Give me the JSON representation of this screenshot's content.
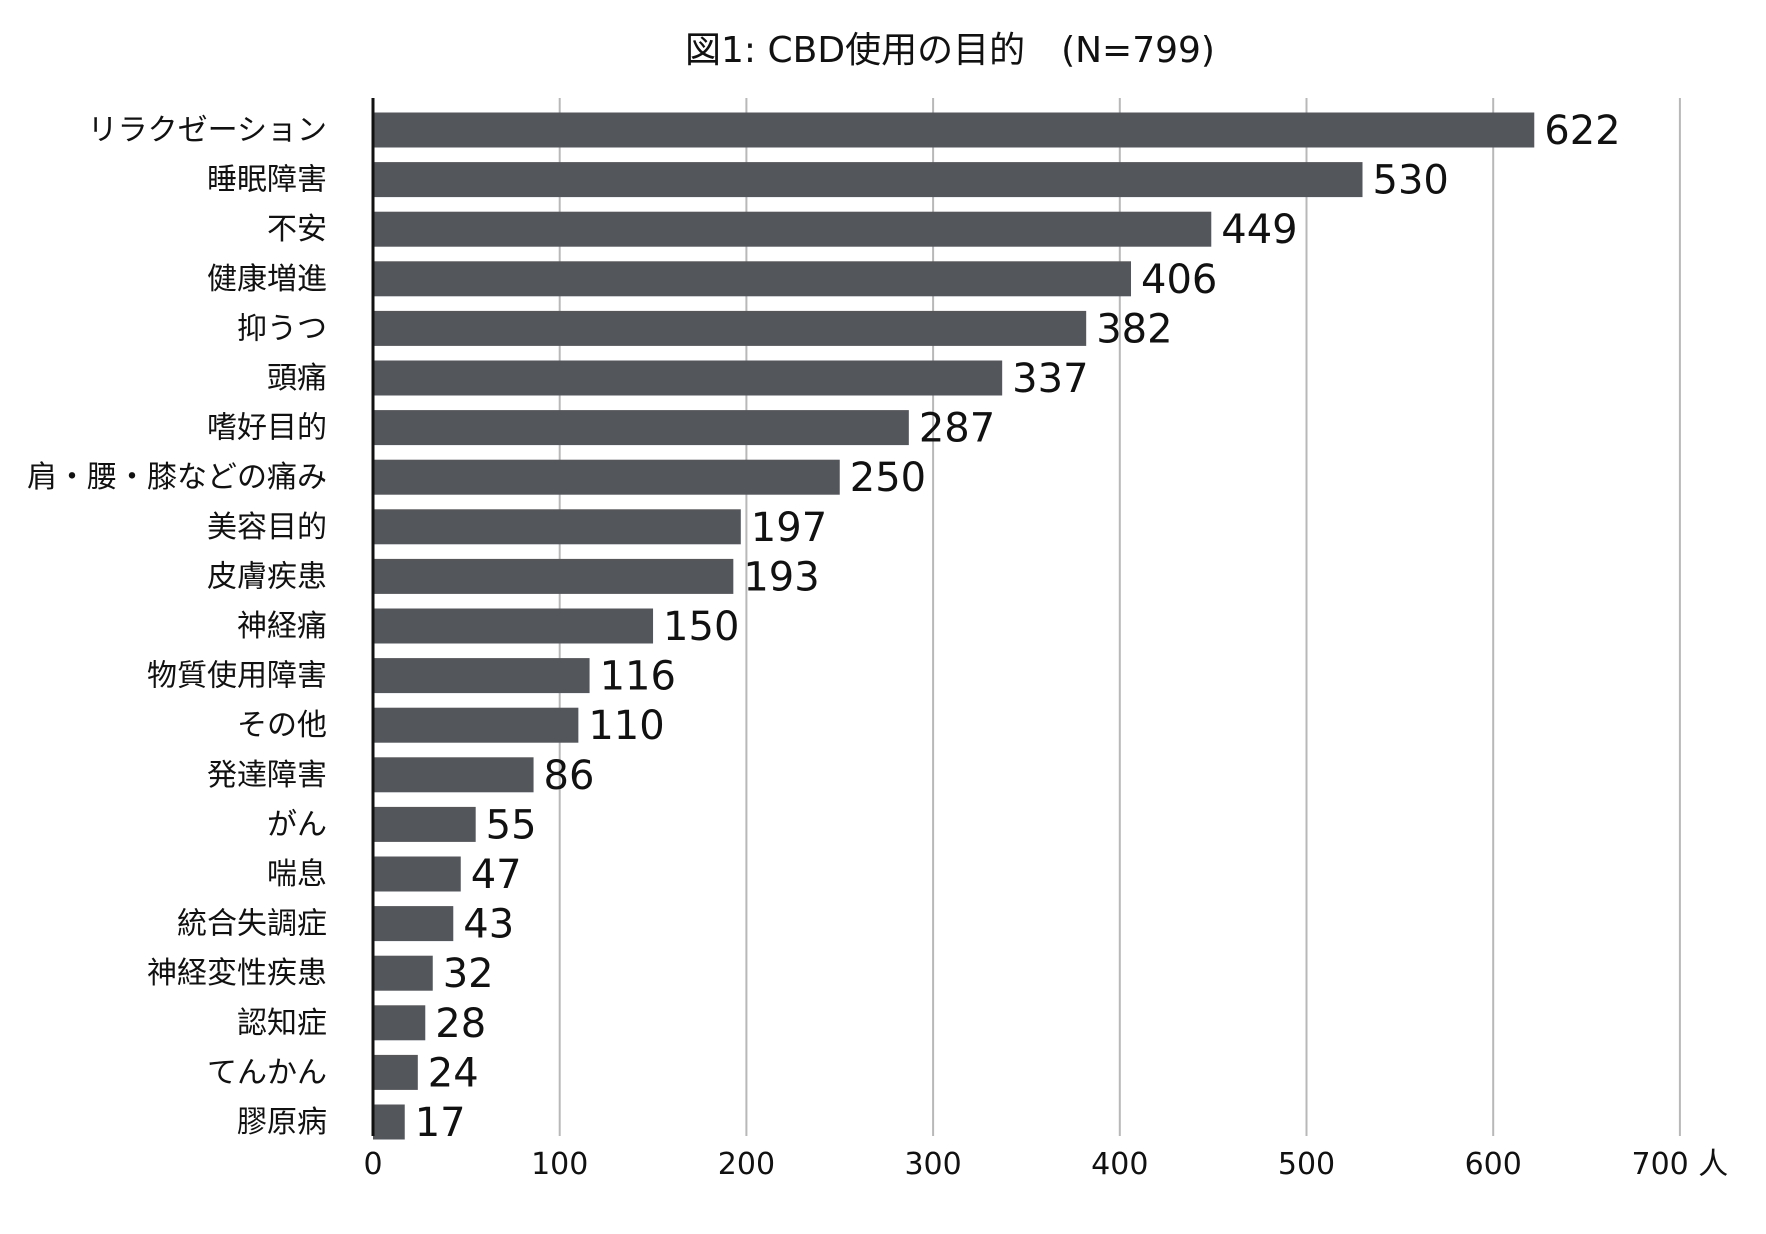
{
  "chart_data": {
    "type": "bar",
    "orientation": "horizontal",
    "title": "図1: CBD使用の目的　(N=799)",
    "xlabel": "",
    "ylabel": "",
    "x_unit": "人",
    "xlim": [
      0,
      700
    ],
    "x_ticks": [
      0,
      100,
      200,
      300,
      400,
      500,
      600,
      700
    ],
    "grid": true,
    "legend": "none",
    "bar_color": "#53565b",
    "grid_color": "#b8b8b8",
    "categories": [
      "リラクゼーション",
      "睡眠障害",
      "不安",
      "健康増進",
      "抑うつ",
      "頭痛",
      "嗜好目的",
      "肩・腰・膝などの痛み",
      "美容目的",
      "皮膚疾患",
      "神経痛",
      "物質使用障害",
      "その他",
      "発達障害",
      "がん",
      "喘息",
      "統合失調症",
      "神経変性疾患",
      "認知症",
      "てんかん",
      "膠原病"
    ],
    "values": [
      622,
      530,
      449,
      406,
      382,
      337,
      287,
      250,
      197,
      193,
      150,
      116,
      110,
      86,
      55,
      47,
      43,
      32,
      28,
      24,
      17
    ]
  }
}
